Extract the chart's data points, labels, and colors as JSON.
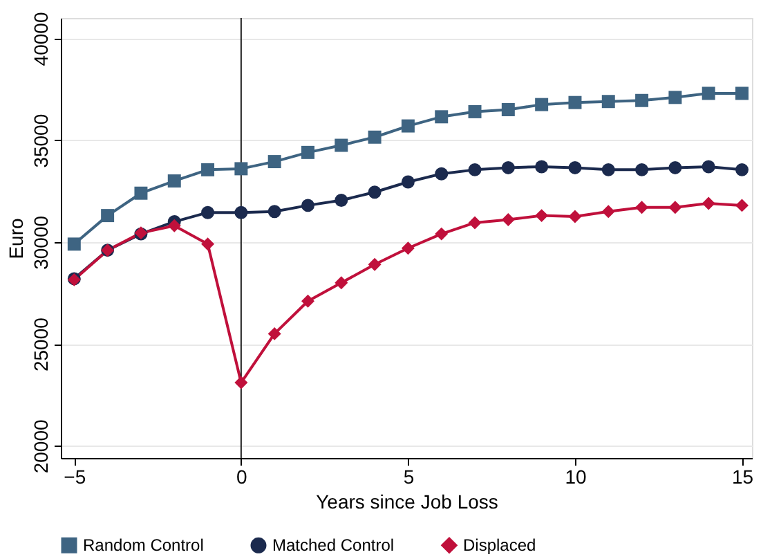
{
  "chart_data": {
    "type": "line",
    "xlabel": "Years since Job Loss",
    "ylabel": "Euro",
    "x": [
      -5,
      -4,
      -3,
      -2,
      -1,
      0,
      1,
      2,
      3,
      4,
      5,
      6,
      7,
      8,
      9,
      10,
      11,
      12,
      13,
      14,
      15
    ],
    "series": [
      {
        "name": "Random Control",
        "color": "#3e6482",
        "marker": "square",
        "values": [
          29900,
          31300,
          32400,
          33000,
          33550,
          33600,
          33950,
          34400,
          34750,
          35150,
          35700,
          36150,
          36400,
          36500,
          36750,
          36850,
          36900,
          36950,
          37100,
          37300,
          37300
        ]
      },
      {
        "name": "Matched Control",
        "color": "#1b2a4e",
        "marker": "circle",
        "values": [
          28200,
          29600,
          30400,
          31000,
          31450,
          31450,
          31500,
          31800,
          32050,
          32450,
          32950,
          33350,
          33550,
          33650,
          33700,
          33650,
          33550,
          33550,
          33650,
          33700,
          33550
        ]
      },
      {
        "name": "Displaced",
        "color": "#c0103b",
        "marker": "diamond",
        "values": [
          28150,
          29600,
          30450,
          30800,
          29900,
          23100,
          25500,
          27100,
          28000,
          28900,
          29700,
          30400,
          30950,
          31100,
          31300,
          31250,
          31500,
          31700,
          31700,
          31900,
          31800
        ]
      }
    ],
    "xlim": [
      -5.4,
      15.3
    ],
    "xticks": [
      -5,
      0,
      5,
      10,
      15
    ],
    "ylim": [
      19400,
      41000
    ],
    "yticks": [
      20000,
      25000,
      30000,
      35000,
      40000
    ],
    "ref_lines": [
      {
        "axis": "x",
        "value": 0,
        "color": "#222222"
      }
    ],
    "grid": "y",
    "legend": "bottom",
    "line_style": "solid"
  }
}
